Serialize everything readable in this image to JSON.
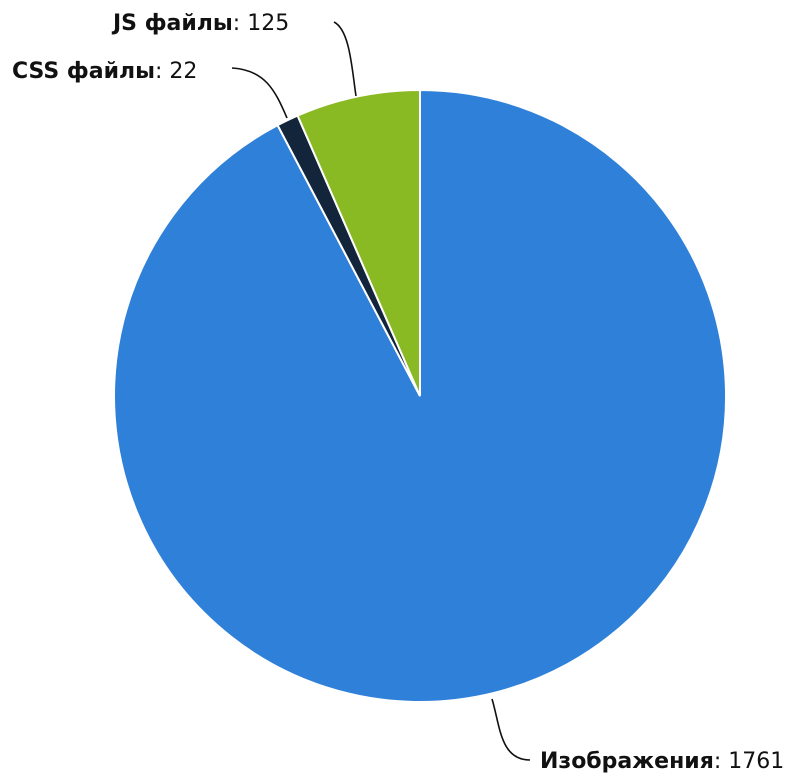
{
  "chart_data": {
    "type": "pie",
    "title": "",
    "slices": [
      {
        "label": "Изображения",
        "value": 1761,
        "color": "#2f80d9"
      },
      {
        "label": "CSS файлы",
        "value": 22,
        "color": "#13253b"
      },
      {
        "label": "JS файлы",
        "value": 125,
        "color": "#8aba23"
      }
    ],
    "label_separator": ":"
  }
}
